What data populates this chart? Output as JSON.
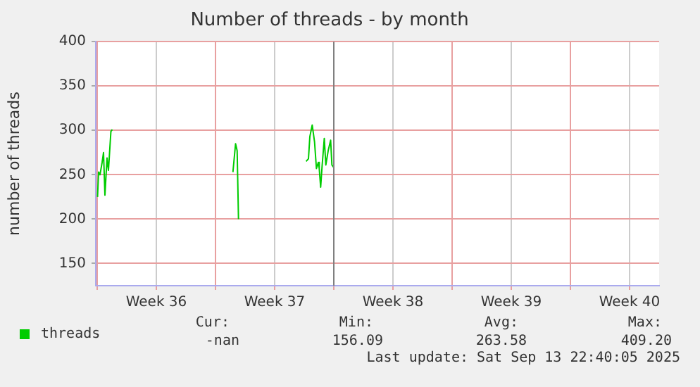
{
  "chart_data": {
    "type": "line",
    "title": "Number of threads - by month",
    "ylabel": "number of threads",
    "x": [
      "2025-09-01T00:30",
      "2025-09-01T02:00",
      "2025-09-01T04:00",
      "2025-09-01T07:00",
      "2025-09-01T09:00",
      "2025-09-01T11:00",
      "2025-09-01T14:00",
      "2025-09-01T16:00",
      "2025-09-01T19:30",
      "2025-09-01T21:30",
      "2025-09-05T00:00",
      "2025-09-09T00:45",
      "2025-09-09T04:30",
      "2025-09-09T06:45",
      "2025-09-09T08:40",
      "2025-09-11T00:00",
      "2025-09-13T08:40",
      "2025-09-13T12:00",
      "2025-09-13T14:00",
      "2025-09-13T17:20",
      "2025-09-13T20:40",
      "2025-09-13T23:20",
      "2025-09-14T02:00",
      "2025-09-14T03:20",
      "2025-09-14T05:20",
      "2025-09-14T07:30",
      "2025-09-14T10:30",
      "2025-09-14T12:40",
      "2025-09-14T16:00",
      "2025-09-14T19:30",
      "2025-09-14T21:20",
      "2025-09-15T00:00"
    ],
    "series": [
      {
        "name": "threads",
        "color": "#00cc00",
        "values": [
          225,
          253,
          250,
          264,
          275,
          227,
          269,
          255,
          299,
          301,
          null,
          253,
          285,
          277,
          200,
          null,
          265,
          268,
          293,
          306,
          287,
          257,
          264,
          257,
          236,
          261,
          291,
          261,
          277,
          289,
          261,
          258
        ]
      }
    ],
    "xlim": [
      "2025-08-31T22:00",
      "2025-10-04T06:00"
    ],
    "xticks": [
      {
        "value": "2025-09-01T00:00",
        "label": null
      },
      {
        "value": "2025-09-04T12:00",
        "label": "Week 36"
      },
      {
        "value": "2025-09-08T00:00",
        "label": null
      },
      {
        "value": "2025-09-11T12:00",
        "label": "Week 37"
      },
      {
        "value": "2025-09-15T00:00",
        "label": null
      },
      {
        "value": "2025-09-18T12:00",
        "label": "Week 38"
      },
      {
        "value": "2025-09-22T00:00",
        "label": null
      },
      {
        "value": "2025-09-25T12:00",
        "label": "Week 39"
      },
      {
        "value": "2025-09-29T00:00",
        "label": null
      },
      {
        "value": "2025-10-02T12:00",
        "label": "Week 40"
      }
    ],
    "ylim": [
      125,
      400
    ],
    "yticks": [
      150,
      200,
      250,
      300,
      350,
      400
    ],
    "ref_lines": [
      {
        "axis": "x",
        "value": "2025-09-15T00:00",
        "color": "#808080"
      }
    ],
    "grid": true,
    "legend": "bottom left",
    "marker": "none",
    "line_style": "solid",
    "annotations": [
      "Cur:",
      "-nan",
      "Min:",
      "156.09",
      "Avg:",
      "263.58",
      "Max:",
      "409.20",
      "Last update: Sat Sep 13 22:40:05 2025"
    ]
  }
}
